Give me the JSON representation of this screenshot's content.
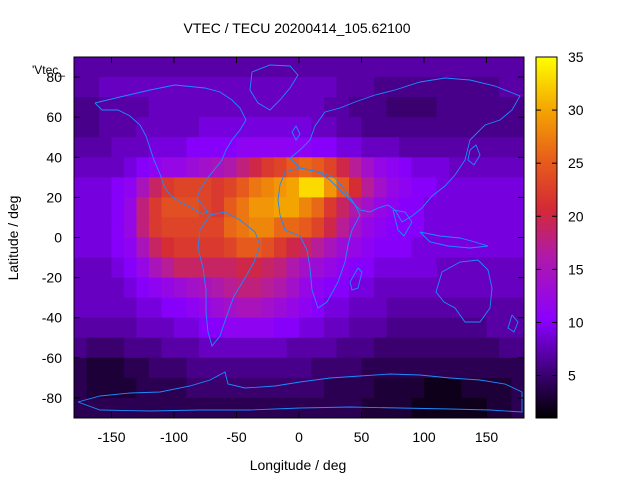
{
  "chart_data": {
    "type": "heatmap",
    "title": "VTEC / TECU 20200414_105.62100",
    "xlabel": "Longitude / deg",
    "ylabel": "Latitude / deg",
    "inplot_label": "'Vtec_",
    "xlim": [
      -180,
      180
    ],
    "ylim": [
      -90,
      90
    ],
    "xticks": [
      -150,
      -100,
      -50,
      0,
      50,
      100,
      150
    ],
    "yticks": [
      -80,
      -60,
      -40,
      -20,
      0,
      20,
      40,
      60,
      80
    ],
    "colorbar": {
      "range": [
        1,
        35
      ],
      "ticks": [
        5,
        10,
        15,
        20,
        25,
        30,
        35
      ],
      "palette": "black-purple-red-orange-yellow"
    },
    "grid": {
      "lon_step": 10,
      "lat_step": 10,
      "lats": [
        85,
        75,
        65,
        55,
        45,
        35,
        25,
        15,
        5,
        -5,
        -15,
        -25,
        -35,
        -45,
        -55,
        -65,
        -75,
        -85
      ],
      "lons": [
        -175,
        -165,
        -155,
        -145,
        -135,
        -125,
        -115,
        -105,
        -95,
        -85,
        -75,
        -65,
        -55,
        -45,
        -35,
        -25,
        -15,
        -5,
        5,
        15,
        25,
        35,
        45,
        55,
        65,
        75,
        85,
        95,
        105,
        115,
        125,
        135,
        145,
        155,
        165,
        175
      ],
      "values": [
        [
          7,
          7,
          7,
          7,
          7,
          7,
          7,
          7,
          7,
          7,
          7,
          7,
          7,
          7,
          7,
          7,
          7,
          7,
          7,
          7,
          7,
          7,
          7,
          7,
          7,
          7,
          7,
          7,
          7,
          7,
          7,
          7,
          7,
          7,
          7,
          7
        ],
        [
          7,
          7,
          8,
          8,
          8,
          8,
          8,
          8,
          8,
          8,
          8,
          8,
          8,
          8,
          8,
          8,
          8,
          8,
          8,
          8,
          8,
          7,
          7,
          7,
          6,
          6,
          6,
          6,
          6,
          6,
          6,
          6,
          6,
          6,
          7,
          7
        ],
        [
          6,
          6,
          7,
          7,
          7,
          7,
          8,
          8,
          8,
          8,
          8,
          8,
          8,
          8,
          8,
          8,
          8,
          8,
          8,
          8,
          7,
          7,
          6,
          6,
          6,
          5,
          5,
          5,
          5,
          6,
          6,
          6,
          6,
          6,
          6,
          6
        ],
        [
          6,
          6,
          7,
          7,
          7,
          8,
          8,
          8,
          8,
          8,
          9,
          9,
          9,
          9,
          9,
          9,
          9,
          9,
          9,
          8,
          8,
          7,
          7,
          6,
          6,
          6,
          6,
          6,
          6,
          6,
          6,
          6,
          6,
          6,
          6,
          6
        ],
        [
          7,
          7,
          7,
          8,
          8,
          8,
          9,
          9,
          9,
          10,
          10,
          10,
          10,
          11,
          11,
          11,
          11,
          11,
          11,
          10,
          10,
          9,
          9,
          8,
          8,
          8,
          7,
          7,
          7,
          7,
          7,
          7,
          7,
          7,
          7,
          7
        ],
        [
          8,
          8,
          8,
          8,
          9,
          10,
          11,
          12,
          12,
          13,
          14,
          15,
          16,
          18,
          20,
          22,
          23,
          25,
          26,
          25,
          23,
          20,
          17,
          14,
          12,
          11,
          10,
          9,
          9,
          9,
          8,
          8,
          8,
          8,
          8,
          8
        ],
        [
          9,
          9,
          9,
          10,
          11,
          15,
          19,
          22,
          23,
          23,
          23,
          22,
          23,
          25,
          27,
          28,
          29,
          30,
          33,
          33,
          29,
          25,
          21,
          17,
          14,
          12,
          11,
          10,
          10,
          9,
          9,
          9,
          9,
          9,
          9,
          9
        ],
        [
          9,
          9,
          9,
          10,
          12,
          18,
          22,
          24,
          24,
          24,
          23,
          22,
          25,
          27,
          29,
          29,
          30,
          30,
          28,
          26,
          22,
          19,
          16,
          14,
          12,
          11,
          10,
          10,
          9,
          9,
          9,
          9,
          9,
          9,
          9,
          9
        ],
        [
          9,
          9,
          9,
          10,
          12,
          18,
          22,
          23,
          23,
          23,
          23,
          23,
          26,
          27,
          28,
          28,
          26,
          26,
          25,
          23,
          20,
          17,
          14,
          12,
          11,
          10,
          10,
          10,
          9,
          9,
          9,
          9,
          9,
          9,
          9,
          9
        ],
        [
          9,
          9,
          9,
          10,
          11,
          15,
          19,
          21,
          22,
          22,
          22,
          22,
          23,
          25,
          25,
          24,
          22,
          20,
          19,
          17,
          15,
          13,
          12,
          11,
          10,
          10,
          10,
          9,
          9,
          9,
          9,
          9,
          9,
          9,
          9,
          9
        ],
        [
          8,
          8,
          8,
          9,
          10,
          12,
          15,
          17,
          19,
          19,
          19,
          19,
          19,
          20,
          20,
          19,
          18,
          16,
          14,
          13,
          12,
          11,
          10,
          10,
          9,
          9,
          9,
          9,
          9,
          8,
          8,
          8,
          8,
          8,
          8,
          8
        ],
        [
          8,
          8,
          8,
          8,
          9,
          10,
          11,
          12,
          13,
          14,
          15,
          16,
          17,
          18,
          18,
          17,
          16,
          14,
          12,
          11,
          10,
          10,
          9,
          9,
          8,
          8,
          8,
          8,
          8,
          8,
          8,
          8,
          8,
          8,
          8,
          8
        ],
        [
          8,
          8,
          8,
          8,
          8,
          9,
          9,
          10,
          10,
          11,
          12,
          13,
          14,
          15,
          15,
          14,
          13,
          12,
          11,
          10,
          9,
          9,
          8,
          8,
          8,
          7,
          7,
          7,
          7,
          7,
          7,
          7,
          7,
          7,
          7,
          7
        ],
        [
          7,
          7,
          7,
          7,
          7,
          8,
          8,
          8,
          9,
          9,
          10,
          10,
          11,
          11,
          11,
          11,
          10,
          10,
          9,
          9,
          8,
          8,
          7,
          7,
          7,
          6,
          6,
          6,
          6,
          6,
          6,
          6,
          6,
          7,
          7,
          7
        ],
        [
          6,
          5,
          5,
          5,
          6,
          6,
          6,
          7,
          7,
          7,
          8,
          8,
          8,
          8,
          8,
          8,
          8,
          7,
          7,
          7,
          7,
          6,
          6,
          6,
          5,
          5,
          5,
          5,
          5,
          5,
          5,
          5,
          5,
          5,
          6,
          6
        ],
        [
          4,
          3,
          3,
          3,
          4,
          4,
          5,
          5,
          5,
          6,
          6,
          6,
          6,
          6,
          6,
          6,
          6,
          6,
          6,
          5,
          5,
          5,
          5,
          4,
          4,
          4,
          4,
          4,
          4,
          4,
          4,
          4,
          4,
          4,
          4,
          4
        ],
        [
          4,
          3,
          3,
          3,
          3,
          4,
          4,
          4,
          4,
          5,
          5,
          5,
          5,
          5,
          5,
          5,
          5,
          5,
          5,
          5,
          4,
          4,
          4,
          4,
          3,
          3,
          3,
          3,
          2,
          2,
          2,
          3,
          3,
          3,
          3,
          4
        ],
        [
          4,
          4,
          4,
          4,
          4,
          4,
          4,
          4,
          4,
          4,
          4,
          4,
          4,
          4,
          4,
          4,
          4,
          4,
          4,
          4,
          4,
          4,
          4,
          3,
          3,
          3,
          3,
          2,
          2,
          2,
          2,
          2,
          2,
          3,
          3,
          4
        ]
      ]
    }
  }
}
